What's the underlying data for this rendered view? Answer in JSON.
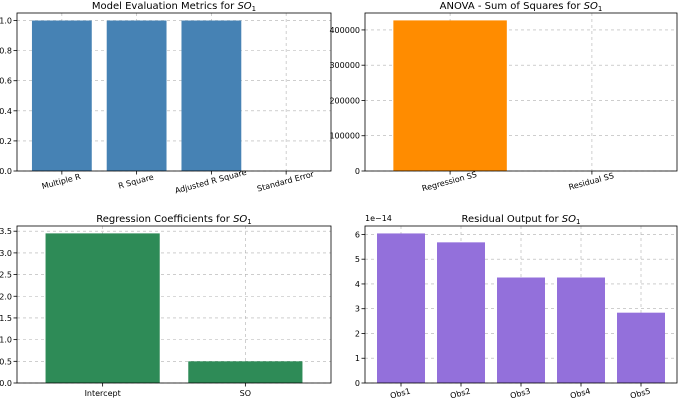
{
  "chart_data": [
    {
      "type": "bar",
      "title": "Model Evaluation Metrics for SO",
      "title_subscript": "1",
      "categories": [
        "Multiple R",
        "R Square",
        "Adjusted R Square",
        "Standard Error"
      ],
      "values": [
        1.0,
        1.0,
        1.0,
        0.0
      ],
      "ylim": [
        0,
        1.05
      ],
      "yticks": [
        "0.0",
        "0.2",
        "0.4",
        "0.6",
        "0.8",
        "1.0"
      ],
      "ytick_values": [
        0,
        0.2,
        0.4,
        0.6,
        0.8,
        1.0
      ],
      "color": "#4682b4",
      "xtick_rotation": -15,
      "grid": true
    },
    {
      "type": "bar",
      "title": "ANOVA - Sum of Squares for SO",
      "title_subscript": "1",
      "categories": [
        "Regression SS",
        "Residual SS"
      ],
      "values": [
        427000,
        0
      ],
      "ylim": [
        0,
        448000
      ],
      "yticks": [
        "0",
        "100000",
        "200000",
        "300000",
        "400000"
      ],
      "ytick_values": [
        0,
        100000,
        200000,
        300000,
        400000
      ],
      "color": "#ff8c00",
      "xtick_rotation": -15,
      "grid": true
    },
    {
      "type": "bar",
      "title": "Regression Coefficients for SO",
      "title_subscript": "1",
      "categories": [
        "Intercept",
        "SO"
      ],
      "values": [
        3.45,
        0.5
      ],
      "ylim": [
        0,
        3.62
      ],
      "yticks": [
        "0.0",
        "0.5",
        "1.0",
        "1.5",
        "2.0",
        "2.5",
        "3.0",
        "3.5"
      ],
      "ytick_values": [
        0,
        0.5,
        1.0,
        1.5,
        2.0,
        2.5,
        3.0,
        3.5
      ],
      "color": "#2e8b57",
      "xtick_rotation": 0,
      "grid": true
    },
    {
      "type": "bar",
      "title": "Residual Output for SO",
      "title_subscript": "1",
      "categories": [
        "Obs1",
        "Obs2",
        "Obs3",
        "Obs4",
        "Obs5"
      ],
      "values": [
        6.04,
        5.68,
        4.26,
        4.26,
        2.84
      ],
      "ylim": [
        0,
        6.34
      ],
      "yticks": [
        "0",
        "1",
        "2",
        "3",
        "4",
        "5",
        "6"
      ],
      "ytick_values": [
        0,
        1,
        2,
        3,
        4,
        5,
        6
      ],
      "offset_label": "1e−14",
      "color": "#9370db",
      "xtick_rotation": -15,
      "grid": true
    }
  ]
}
